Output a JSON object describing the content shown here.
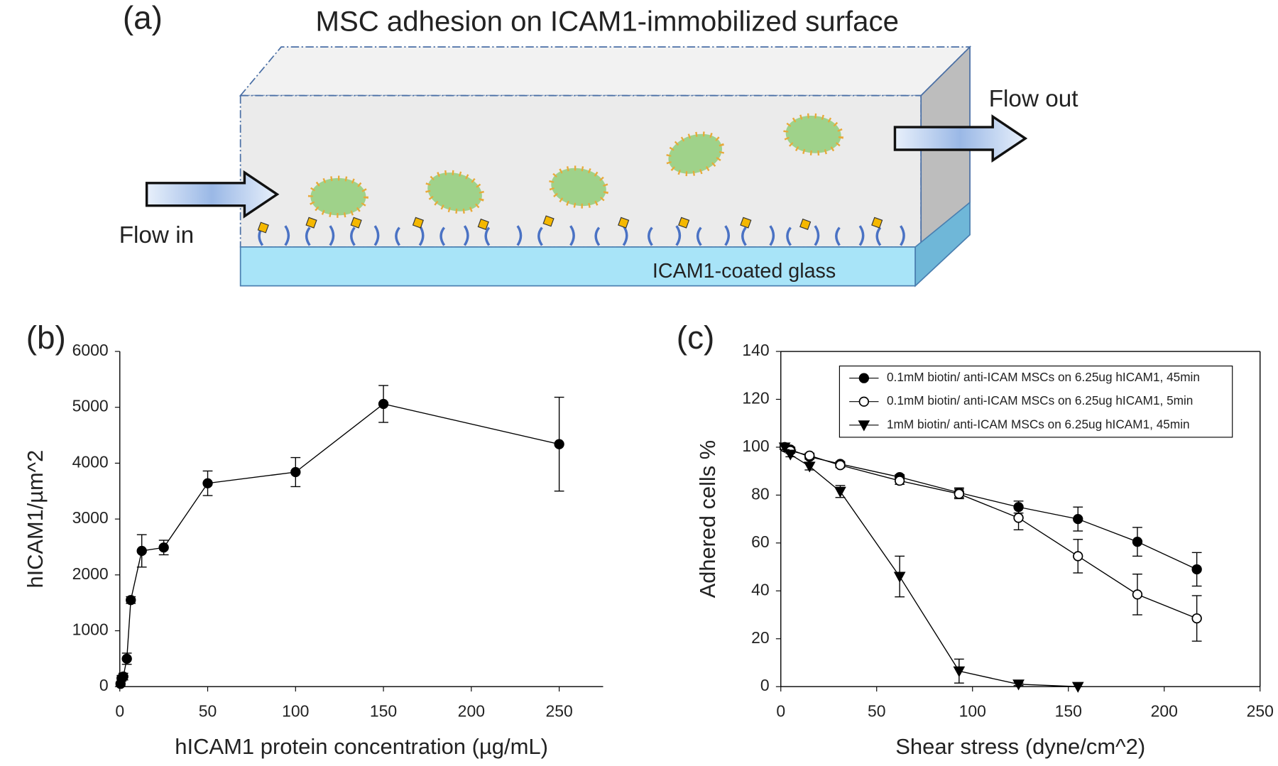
{
  "diagram": {
    "label": "(a)",
    "title": "MSC adhesion on ICAM1-immobilized surface",
    "flow_in": "Flow in",
    "flow_out": "Flow out",
    "surface": "ICAM1-coated glass"
  },
  "chart_data": [
    {
      "type": "line",
      "label": "(b)",
      "x_label": "hICAM1 protein concentration (µg/mL)",
      "y_label": "hICAM1/µm^2",
      "x": [
        0.4,
        1,
        2,
        4,
        6.25,
        12.5,
        25,
        50,
        100,
        150,
        250
      ],
      "values": [
        50,
        150,
        180,
        500,
        1550,
        2430,
        2490,
        3640,
        3840,
        5060,
        4340
      ],
      "errors": [
        30,
        50,
        60,
        100,
        60,
        290,
        130,
        220,
        260,
        330,
        840
      ],
      "marker": "circle",
      "color": "#000000",
      "xlim": [
        0,
        275
      ],
      "xticks": [
        0,
        50,
        100,
        150,
        200,
        250
      ],
      "ylim": [
        0,
        6000
      ],
      "yticks": [
        0,
        1000,
        2000,
        3000,
        4000,
        5000,
        6000
      ],
      "frame": false
    },
    {
      "type": "line",
      "label": "(c)",
      "x_label": "Shear stress (dyne/cm^2)",
      "y_label": "Adhered cells %",
      "series": [
        {
          "name": "0.1mM biotin/ anti-ICAM MSCs on 6.25ug hICAM1, 45min",
          "marker": "circle",
          "color": "#000000",
          "x": [
            2,
            5,
            15,
            31,
            62,
            93,
            124,
            155,
            186,
            217
          ],
          "values": [
            100,
            99,
            96,
            93,
            87.5,
            81,
            75,
            70,
            60.5,
            49
          ],
          "errors": [
            1,
            1,
            1,
            1,
            1,
            2,
            2.5,
            5,
            6,
            7
          ]
        },
        {
          "name": "0.1mM biotin/ anti-ICAM MSCs on 6.25ug hICAM1, 5min",
          "marker": "circle-open",
          "color": "#000000",
          "x": [
            2,
            5,
            15,
            31,
            62,
            93,
            124,
            155,
            186,
            217
          ],
          "values": [
            100,
            98.5,
            96.5,
            92.5,
            86,
            80.5,
            70.5,
            54.5,
            38.5,
            28.5
          ],
          "errors": [
            1,
            1,
            1,
            1,
            1.5,
            2,
            5,
            7,
            8.5,
            9.5
          ]
        },
        {
          "name": "1mM biotin/ anti-ICAM MSCs on 6.25ug hICAM1, 45min",
          "marker": "triangle-down",
          "color": "#000000",
          "x": [
            2,
            5,
            15,
            31,
            62,
            93,
            124,
            155
          ],
          "values": [
            100,
            97,
            92,
            81.5,
            46,
            6.5,
            1,
            0
          ],
          "errors": [
            1,
            1,
            1.5,
            2.5,
            8.5,
            5,
            0.5,
            0
          ]
        }
      ],
      "xlim": [
        0,
        250
      ],
      "xticks": [
        0,
        50,
        100,
        150,
        200,
        250
      ],
      "ylim": [
        0,
        140
      ],
      "yticks": [
        0,
        20,
        40,
        60,
        80,
        100,
        120,
        140
      ],
      "frame": true,
      "legend": "upper-center"
    }
  ]
}
